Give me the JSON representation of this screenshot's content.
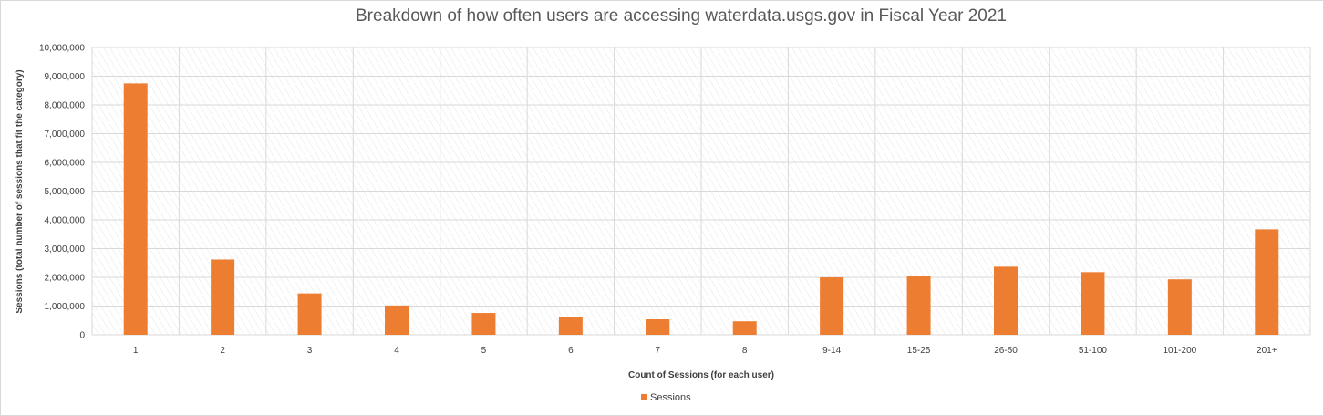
{
  "chart_data": {
    "type": "bar",
    "title": "Breakdown of how often users are accessing waterdata.usgs.gov in Fiscal Year 2021",
    "xlabel": "Count  of Sessions (for each user)",
    "ylabel": "Sessions (total number of sessions that fit the category)",
    "categories": [
      "1",
      "2",
      "3",
      "4",
      "5",
      "6",
      "7",
      "8",
      "9-14",
      "15-25",
      "26-50",
      "51-100",
      "101-200",
      "201+"
    ],
    "series": [
      {
        "name": "Sessions",
        "color": "#ed7d31",
        "values": [
          8750000,
          2620000,
          1440000,
          1020000,
          760000,
          620000,
          540000,
          470000,
          2000000,
          2040000,
          2370000,
          2180000,
          1930000,
          3670000
        ]
      }
    ],
    "ylim": [
      0,
      10000000
    ],
    "yticks": [
      "0",
      "1,000,000",
      "2,000,000",
      "3,000,000",
      "4,000,000",
      "5,000,000",
      "6,000,000",
      "7,000,000",
      "8,000,000",
      "9,000,000",
      "10,000,000"
    ],
    "grid": true,
    "legend_position": "bottom"
  }
}
